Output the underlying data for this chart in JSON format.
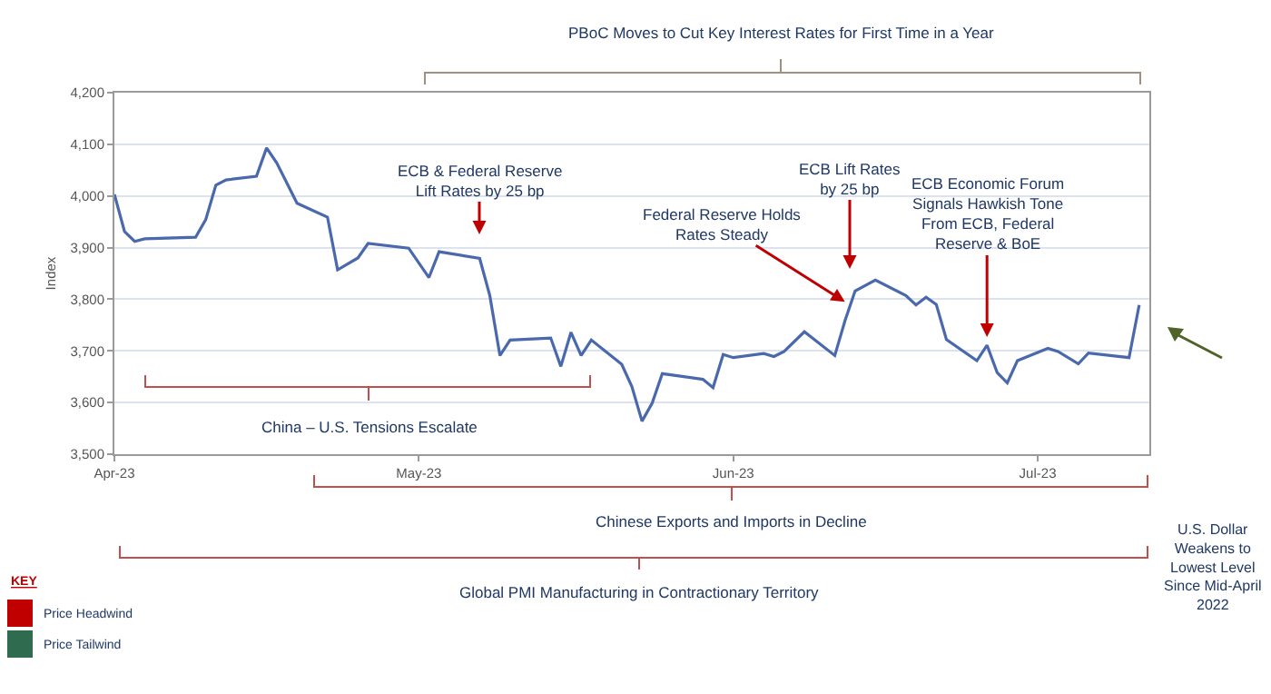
{
  "chart_data": {
    "type": "line",
    "ylabel": "Index",
    "x": [
      "2023-04-01",
      "2023-04-02",
      "2023-04-03",
      "2023-04-04",
      "2023-04-09",
      "2023-04-10",
      "2023-04-11",
      "2023-04-12",
      "2023-04-15",
      "2023-04-16",
      "2023-04-17",
      "2023-04-19",
      "2023-04-22",
      "2023-04-23",
      "2023-04-25",
      "2023-04-26",
      "2023-04-30",
      "2023-05-02",
      "2023-05-03",
      "2023-05-07",
      "2023-05-08",
      "2023-05-09",
      "2023-05-10",
      "2023-05-14",
      "2023-05-15",
      "2023-05-16",
      "2023-05-17",
      "2023-05-18",
      "2023-05-21",
      "2023-05-22",
      "2023-05-23",
      "2023-05-24",
      "2023-05-25",
      "2023-05-29",
      "2023-05-30",
      "2023-05-31",
      "2023-06-01",
      "2023-06-04",
      "2023-06-05",
      "2023-06-06",
      "2023-06-08",
      "2023-06-11",
      "2023-06-12",
      "2023-06-13",
      "2023-06-15",
      "2023-06-18",
      "2023-06-19",
      "2023-06-20",
      "2023-06-21",
      "2023-06-22",
      "2023-06-25",
      "2023-06-26",
      "2023-06-27",
      "2023-06-28",
      "2023-06-29",
      "2023-07-02",
      "2023-07-03",
      "2023-07-05",
      "2023-07-06",
      "2023-07-10",
      "2023-07-11"
    ],
    "series": [
      {
        "color": "#4a69ad",
        "values": [
          4003,
          3931,
          3912,
          3917,
          3920,
          3954,
          4021,
          4031,
          4038,
          4093,
          4064,
          3986,
          3959,
          3857,
          3880,
          3908,
          3899,
          3842,
          3892,
          3879,
          3807,
          3691,
          3721,
          3725,
          3670,
          3736,
          3691,
          3721,
          3674,
          3631,
          3564,
          3599,
          3656,
          3645,
          3629,
          3693,
          3687,
          3695,
          3689,
          3699,
          3737,
          3691,
          3758,
          3816,
          3837,
          3807,
          3789,
          3804,
          3790,
          3722,
          3681,
          3711,
          3658,
          3638,
          3681,
          3705,
          3699,
          3675,
          3696,
          3687,
          3789
        ]
      }
    ],
    "xlim": [
      "2023-04-01",
      "2023-07-12"
    ],
    "xticks": [
      {
        "value": "2023-04-01",
        "label": "Apr-23"
      },
      {
        "value": "2023-05-01",
        "label": "May-23"
      },
      {
        "value": "2023-06-01",
        "label": "Jun-23"
      },
      {
        "value": "2023-07-01",
        "label": "Jul-23"
      }
    ],
    "ylim": [
      3500,
      4200
    ],
    "yticks": [
      {
        "value": 3500,
        "label": "3,500"
      },
      {
        "value": 3600,
        "label": "3,600"
      },
      {
        "value": 3700,
        "label": "3,700"
      },
      {
        "value": 3800,
        "label": "3,800"
      },
      {
        "value": 3900,
        "label": "3,900"
      },
      {
        "value": 4000,
        "label": "4,000"
      },
      {
        "value": 4100,
        "label": "4,100"
      },
      {
        "value": 4200,
        "label": "4,200"
      }
    ],
    "grid": "y",
    "annotations": [
      "PBoC Moves to Cut Key Interest Rates for First Time in a Year",
      "ECB & Federal Reserve\nLift Rates by 25 bp",
      {
        "text": "Federal Reserve Holds\nRates Steady",
        "x": "2023-06-12",
        "y": 3795
      },
      "ECB Lift Rates\nby 25 bp",
      {
        "text": "ECB Economic Forum\nSignals Hawkish Tone\nFrom ECB, Federal\nReserve & BoE",
        "x": "2023-06-26",
        "y": 3727
      },
      "U.S. Dollar\nWeakens to\nLowest Level\nSince Mid-April\n2022",
      "China – U.S. Tensions Escalate",
      "Chinese Exports and Imports in Decline",
      "Global PMI Manufacturing in Contractionary Territory",
      "KEY",
      "Price Headwind",
      "Price Tailwind"
    ]
  }
}
